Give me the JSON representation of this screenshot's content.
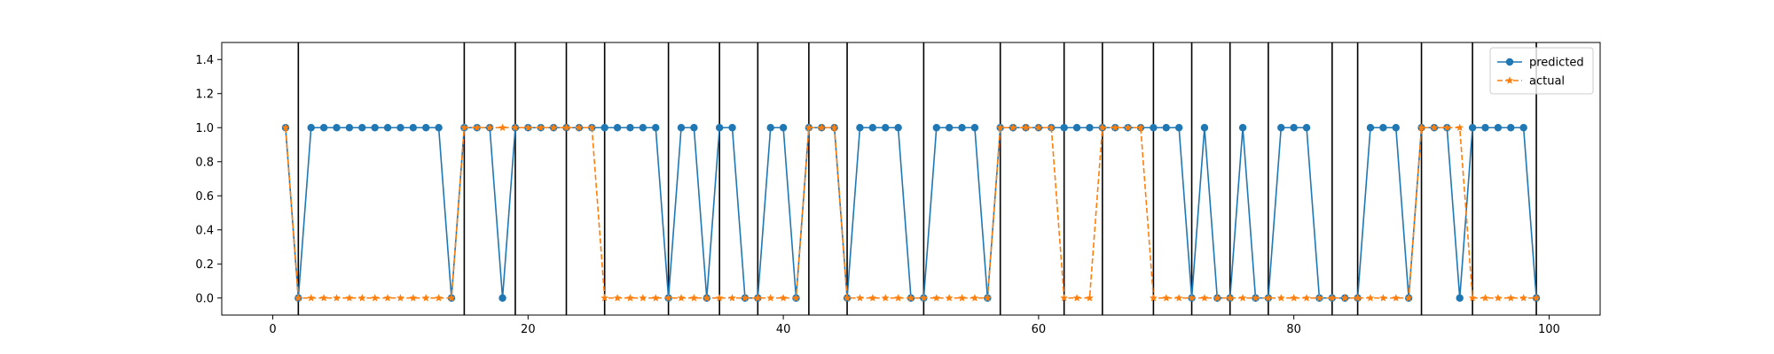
{
  "chart_data": {
    "type": "line",
    "xlim": [
      -4,
      104
    ],
    "ylim": [
      -0.1,
      1.5
    ],
    "x_ticks": [
      0,
      20,
      40,
      60,
      80,
      100
    ],
    "y_ticks": [
      0.0,
      0.2,
      0.4,
      0.6,
      0.8,
      1.0,
      1.2,
      1.4
    ],
    "x_tick_labels": [
      "0",
      "20",
      "40",
      "60",
      "80",
      "100"
    ],
    "y_tick_labels": [
      "0.0",
      "0.2",
      "0.4",
      "0.6",
      "0.8",
      "1.0",
      "1.2",
      "1.4"
    ],
    "grid": false,
    "legend_position": "top-right",
    "vertical_lines_x": [
      2,
      15,
      19,
      23,
      26,
      31,
      35,
      38,
      42,
      45,
      51,
      57,
      62,
      65,
      69,
      72,
      75,
      78,
      83,
      85,
      90,
      94,
      99
    ],
    "x": [
      1,
      2,
      3,
      4,
      5,
      6,
      7,
      8,
      9,
      10,
      11,
      12,
      13,
      14,
      15,
      16,
      17,
      18,
      19,
      20,
      21,
      22,
      23,
      24,
      25,
      26,
      27,
      28,
      29,
      30,
      31,
      32,
      33,
      34,
      35,
      36,
      37,
      38,
      39,
      40,
      41,
      42,
      43,
      44,
      45,
      46,
      47,
      48,
      49,
      50,
      51,
      52,
      53,
      54,
      55,
      56,
      57,
      58,
      59,
      60,
      61,
      62,
      63,
      64,
      65,
      66,
      67,
      68,
      69,
      70,
      71,
      72,
      73,
      74,
      75,
      76,
      77,
      78,
      79,
      80,
      81,
      82,
      83,
      84,
      85,
      86,
      87,
      88,
      89,
      90,
      91,
      92,
      93,
      94,
      95,
      96,
      97,
      98,
      99
    ],
    "series": [
      {
        "name": "predicted",
        "color": "#1f77b4",
        "line_style": "solid",
        "marker": "circle",
        "values": [
          1,
          0,
          1,
          1,
          1,
          1,
          1,
          1,
          1,
          1,
          1,
          1,
          1,
          0,
          1,
          1,
          1,
          0,
          1,
          1,
          1,
          1,
          1,
          1,
          1,
          1,
          1,
          1,
          1,
          1,
          0,
          1,
          1,
          0,
          1,
          1,
          0,
          0,
          1,
          1,
          0,
          1,
          1,
          1,
          0,
          1,
          1,
          1,
          1,
          0,
          0,
          1,
          1,
          1,
          1,
          0,
          1,
          1,
          1,
          1,
          1,
          1,
          1,
          1,
          1,
          1,
          1,
          1,
          1,
          1,
          1,
          0,
          1,
          0,
          0,
          1,
          0,
          0,
          1,
          1,
          1,
          0,
          0,
          0,
          0,
          1,
          1,
          1,
          0,
          1,
          1,
          1,
          0,
          1,
          1,
          1,
          1,
          1,
          0
        ]
      },
      {
        "name": "actual",
        "color": "#ff7f0e",
        "line_style": "dashed",
        "marker": "star",
        "values": [
          1,
          0,
          0,
          0,
          0,
          0,
          0,
          0,
          0,
          0,
          0,
          0,
          0,
          0,
          1,
          1,
          1,
          1,
          1,
          1,
          1,
          1,
          1,
          1,
          1,
          0,
          0,
          0,
          0,
          0,
          0,
          0,
          0,
          0,
          0,
          0,
          0,
          0,
          0,
          0,
          0,
          1,
          1,
          1,
          0,
          0,
          0,
          0,
          0,
          0,
          0,
          0,
          0,
          0,
          0,
          0,
          1,
          1,
          1,
          1,
          1,
          0,
          0,
          0,
          1,
          1,
          1,
          1,
          0,
          0,
          0,
          0,
          0,
          0,
          0,
          0,
          0,
          0,
          0,
          0,
          0,
          0,
          0,
          0,
          0,
          0,
          0,
          0,
          0,
          1,
          1,
          1,
          1,
          0,
          0,
          0,
          0,
          0,
          0
        ]
      }
    ]
  }
}
